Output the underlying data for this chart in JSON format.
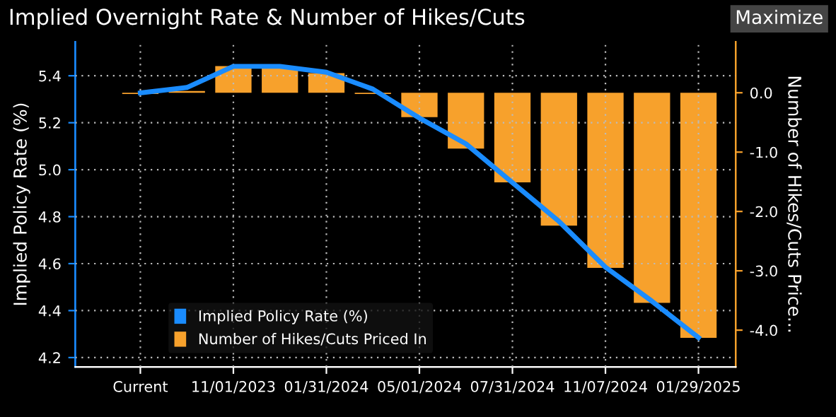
{
  "chart_data": {
    "type": "bar",
    "title": "Implied Overnight Rate & Number of Hikes/Cuts",
    "annotations": [
      "Maximize"
    ],
    "categories": [
      "Current",
      null,
      "11/01/2023",
      null,
      "01/31/2024",
      null,
      "05/01/2024",
      null,
      "07/31/2024",
      null,
      "11/07/2024",
      null,
      "01/29/2025"
    ],
    "series": [
      {
        "name": "Implied Policy Rate (%)",
        "type": "line",
        "color": "#1a8cff",
        "values": [
          5.327,
          5.35,
          5.44,
          5.44,
          5.415,
          5.343,
          5.22,
          5.11,
          4.945,
          4.78,
          4.585,
          4.44,
          4.285
        ]
      },
      {
        "name": "Number of Hikes/Cuts Priced In",
        "axis": "y2",
        "color": "#f7a12c",
        "values": [
          -0.02,
          0.03,
          0.45,
          0.42,
          0.33,
          -0.02,
          -0.41,
          -0.94,
          -1.51,
          -2.24,
          -2.95,
          -3.54,
          -4.13
        ]
      }
    ],
    "ylabel": "Implied Policy Rate (%)",
    "y2label": "Number of Hikes/Cuts Price...",
    "ylim": [
      4.16,
      5.545
    ],
    "yticks": [
      4.2,
      4.4,
      4.6,
      4.8,
      {
        "value": 5,
        "label": "5.0"
      },
      5.2,
      5.4
    ],
    "y2lim": [
      -4.62,
      0.86
    ],
    "y2ticks": [
      {
        "value": -4,
        "label": "-4.0"
      },
      {
        "value": -3,
        "label": "-3.0"
      },
      {
        "value": -2,
        "label": "-2.0"
      },
      {
        "value": -1,
        "label": "-1.0"
      },
      {
        "value": 0,
        "label": "0.0"
      }
    ],
    "grid": true,
    "legend": "bottom left",
    "line_style": "solid",
    "marker": "none"
  }
}
